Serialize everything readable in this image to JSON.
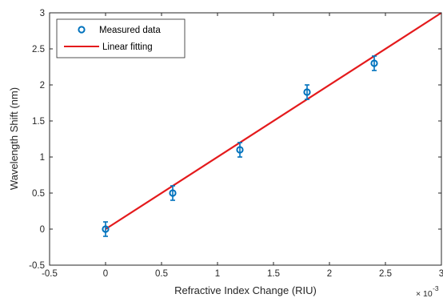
{
  "chart_data": {
    "type": "scatter",
    "xlabel": "Refractive Index Change (RIU)",
    "ylabel": "Wavelength Shift (nm)",
    "x_exponent_label": "× 10",
    "x_exponent_power": "-3",
    "xlim": [
      -0.5,
      3
    ],
    "ylim": [
      -0.5,
      3
    ],
    "x_ticks": [
      -0.5,
      0,
      0.5,
      1,
      1.5,
      2,
      2.5,
      3
    ],
    "y_ticks": [
      -0.5,
      0,
      0.5,
      1,
      1.5,
      2,
      2.5,
      3
    ],
    "x_tick_labels": [
      "-0.5",
      "0",
      "0.5",
      "1",
      "1.5",
      "2",
      "2.5",
      "3"
    ],
    "y_tick_labels": [
      "-0.5",
      "0",
      "0.5",
      "1",
      "1.5",
      "2",
      "2.5",
      "3"
    ],
    "grid": false,
    "legend_position": "top-left",
    "series": [
      {
        "name": "Measured data",
        "type": "scatter",
        "marker": "circle",
        "color": "#0072BD",
        "x": [
          0,
          0.6,
          1.2,
          1.8,
          2.4
        ],
        "y": [
          0,
          0.5,
          1.1,
          1.9,
          2.3
        ],
        "error": [
          0.1,
          0.1,
          0.1,
          0.1,
          0.1
        ]
      },
      {
        "name": "Linear fitting",
        "type": "line",
        "color": "#E41A1C",
        "x": [
          0,
          3
        ],
        "y": [
          0,
          3
        ]
      }
    ]
  }
}
